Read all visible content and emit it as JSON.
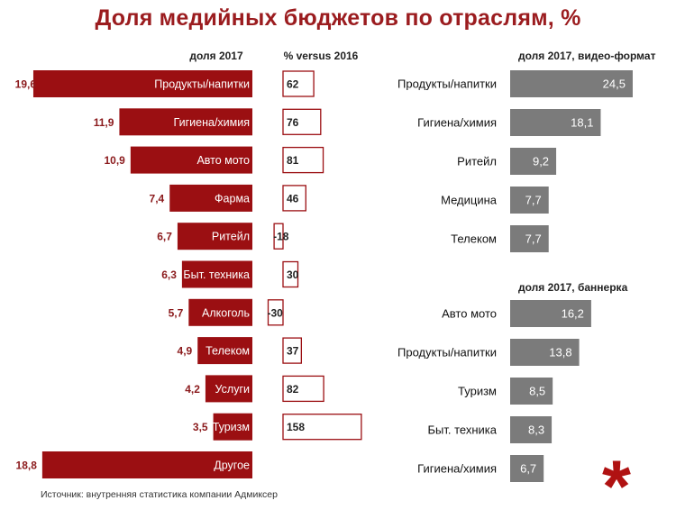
{
  "title": "Доля медийных бюджетов по отраслям, %",
  "source": "Источник: внутренняя статистика компании Адмиксер",
  "chart_data": [
    {
      "type": "bar",
      "header": "доля 2017",
      "categories": [
        "Продукты/напитки",
        "Гигиена/химия",
        "Авто мото",
        "Фарма",
        "Ритейл",
        "Быт. техника",
        "Алкоголь",
        "Телеком",
        "Услуги",
        "Туризм",
        "Другое"
      ],
      "values": [
        19.6,
        11.9,
        10.9,
        7.4,
        6.7,
        6.3,
        5.7,
        4.9,
        4.2,
        3.5,
        18.8
      ],
      "value_labels": [
        "19,6",
        "11,9",
        "10,9",
        "7,4",
        "6,7",
        "6,3",
        "5,7",
        "4,9",
        "4,2",
        "3,5",
        "18,8"
      ],
      "color": "#9b0f12"
    },
    {
      "type": "bar",
      "header": "% versus 2016",
      "categories": [
        "Продукты/напитки",
        "Гигиена/химия",
        "Авто мото",
        "Фарма",
        "Ритейл",
        "Быт. техника",
        "Алкоголь",
        "Телеком",
        "Услуги",
        "Туризм",
        "Другое"
      ],
      "values": [
        62,
        76,
        81,
        46,
        -18,
        30,
        -30,
        37,
        82,
        158,
        null
      ],
      "value_labels": [
        "62",
        "76",
        "81",
        "46",
        "-18",
        "30",
        "-30",
        "37",
        "82",
        "158",
        ""
      ],
      "color": "#9b0f12"
    },
    {
      "type": "bar",
      "header": "доля 2017, видео-формат",
      "categories": [
        "Продукты/напитки",
        "Гигиена/химия",
        "Ритейл",
        "Медицина",
        "Телеком"
      ],
      "values": [
        24.5,
        18.1,
        9.2,
        7.7,
        7.7
      ],
      "value_labels": [
        "24,5",
        "18,1",
        "9,2",
        "7,7",
        "7,7"
      ],
      "color": "#7b7b7b"
    },
    {
      "type": "bar",
      "header": "доля 2017, баннерка",
      "categories": [
        "Авто мото",
        "Продукты/напитки",
        "Туризм",
        "Быт. техника",
        "Гигиена/химия"
      ],
      "values": [
        16.2,
        13.8,
        8.5,
        8.3,
        6.7
      ],
      "value_labels": [
        "16,2",
        "13,8",
        "8,5",
        "8,3",
        "6,7"
      ],
      "color": "#7b7b7b"
    }
  ]
}
